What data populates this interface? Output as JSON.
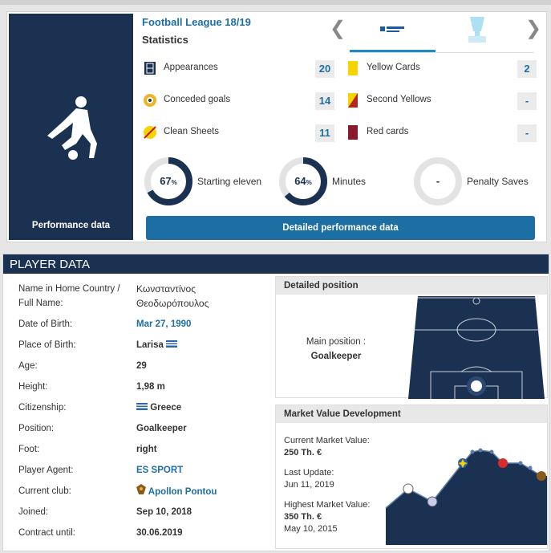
{
  "performance": {
    "league": "Football League 18/19",
    "heading": "Statistics",
    "side_label": "Performance data",
    "left_stats": [
      {
        "label": "Appearances",
        "value": 20
      },
      {
        "label": "Conceded goals",
        "value": 14
      },
      {
        "label": "Clean Sheets",
        "value": 11
      }
    ],
    "right_stats": [
      {
        "label": "Yellow Cards",
        "value": 2
      },
      {
        "label": "Second Yellows",
        "value": "-"
      },
      {
        "label": "Red cards",
        "value": "-"
      }
    ],
    "circles": [
      {
        "value": 67,
        "unit": "%",
        "label": "Starting eleven"
      },
      {
        "value": 64,
        "unit": "%",
        "label": "Minutes"
      },
      {
        "value": "-",
        "label": "Penalty Saves"
      }
    ],
    "button": "Detailed performance data"
  },
  "player_data": {
    "title": "PLAYER DATA",
    "rows": [
      {
        "label": "Name in Home Country / Full Name:",
        "value": "Κωνσταντίνος Θεοδωρόπουλος"
      },
      {
        "label": "Date of Birth:",
        "value": "Mar 27, 1990"
      },
      {
        "label": "Place of Birth:",
        "value": "Larisa"
      },
      {
        "label": "Age:",
        "value": 29
      },
      {
        "label": "Height:",
        "value": "1,98 m"
      },
      {
        "label": "Citizenship:",
        "value": "Greece"
      },
      {
        "label": "Position:",
        "value": "Goalkeeper"
      },
      {
        "label": "Foot:",
        "value": "right"
      },
      {
        "label": "Player Agent:",
        "value": "ES SPORT"
      },
      {
        "label": "Current club:",
        "value": "Apollon Pontou"
      },
      {
        "label": "Joined:",
        "value": "Sep 10, 2018"
      },
      {
        "label": "Contract until:",
        "value": "30.06.2019"
      }
    ]
  },
  "detailed_position": {
    "title": "Detailed position",
    "label": "Main position :",
    "value": "Goalkeeper"
  },
  "market_value": {
    "title": "Market Value Development",
    "items": [
      {
        "label": "Current Market Value:",
        "value": "250 Th. €"
      },
      {
        "label": "Last Update:",
        "value": "Jun 11, 2019"
      },
      {
        "label": "Highest Market Value:",
        "value": "350 Th. €",
        "date": "May 10, 2015"
      }
    ]
  }
}
